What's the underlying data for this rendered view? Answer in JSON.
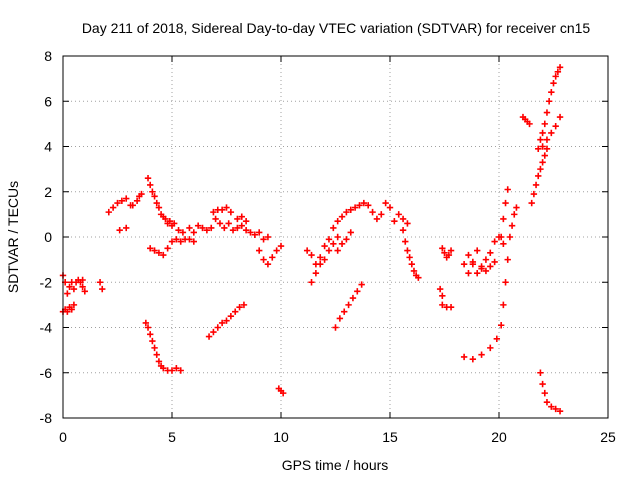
{
  "chart_data": {
    "type": "scatter",
    "title": "Day 211 of 2018, Sidereal Day-to-day VTEC variation (SDTVAR) for receiver cn15",
    "xlabel": "GPS time / hours",
    "ylabel": "SDTVAR / TECUs",
    "xlim": [
      0,
      25
    ],
    "ylim": [
      -8,
      8
    ],
    "xticks": [
      "0",
      "5",
      "10",
      "15",
      "20",
      "25"
    ],
    "yticks": [
      "8",
      "6",
      "4",
      "2",
      "0",
      "-2",
      "-4",
      "-6",
      "-8"
    ],
    "grid": true,
    "marker": "plus",
    "color": "#ff0000",
    "series": [
      {
        "name": "seg-a",
        "x": [
          0.0,
          0.1,
          0.2,
          0.3,
          0.4,
          0.5,
          0.6,
          0.7,
          0.8,
          0.9
        ],
        "y": [
          -1.7,
          -2.0,
          -2.5,
          -2.2,
          -2.0,
          -2.3,
          -2.0,
          -1.9,
          -2.0,
          -1.9
        ]
      },
      {
        "name": "seg-b",
        "x": [
          0.0,
          0.1,
          0.2,
          0.3,
          0.4,
          0.5
        ],
        "y": [
          -3.3,
          -3.2,
          -3.3,
          -3.1,
          -3.2,
          -3.0
        ]
      },
      {
        "name": "seg-c",
        "x": [
          0.9,
          1.0,
          1.7,
          1.8
        ],
        "y": [
          -2.2,
          -2.4,
          -2.0,
          -2.3
        ]
      },
      {
        "name": "seg-d",
        "x": [
          2.1,
          2.3,
          2.5,
          2.7,
          2.9,
          3.1
        ],
        "y": [
          1.1,
          1.3,
          1.5,
          1.6,
          1.7,
          1.4
        ]
      },
      {
        "name": "seg-e",
        "x": [
          2.6,
          2.9
        ],
        "y": [
          0.3,
          0.4
        ]
      },
      {
        "name": "seg-f",
        "x": [
          3.2,
          3.4,
          3.5,
          3.6
        ],
        "y": [
          1.4,
          1.6,
          1.8,
          1.9
        ]
      },
      {
        "name": "seg-g",
        "x": [
          3.9,
          4.0,
          4.1,
          4.2,
          4.3,
          4.4,
          4.5,
          4.6,
          4.7,
          4.8,
          4.9,
          5.0,
          5.1
        ],
        "y": [
          2.6,
          2.3,
          2.0,
          1.8,
          1.5,
          1.3,
          1.0,
          0.9,
          0.8,
          0.6,
          0.7,
          0.5,
          0.6
        ]
      },
      {
        "name": "seg-h",
        "x": [
          4.0,
          4.2,
          4.4,
          4.6,
          4.8,
          5.0,
          5.2,
          5.4,
          5.6,
          5.8,
          6.0
        ],
        "y": [
          -0.5,
          -0.6,
          -0.7,
          -0.8,
          -0.5,
          -0.2,
          -0.1,
          -0.2,
          -0.1,
          -0.1,
          -0.2
        ]
      },
      {
        "name": "seg-i",
        "x": [
          5.3,
          5.5,
          5.8,
          6.0
        ],
        "y": [
          0.3,
          0.2,
          0.4,
          0.2
        ]
      },
      {
        "name": "seg-j",
        "x": [
          3.8,
          3.9,
          4.0,
          4.1,
          4.2,
          4.3,
          4.4,
          4.5,
          4.6,
          4.8,
          5.0,
          5.2,
          5.4
        ],
        "y": [
          -3.8,
          -4.0,
          -4.3,
          -4.6,
          -4.9,
          -5.2,
          -5.5,
          -5.7,
          -5.8,
          -5.9,
          -5.9,
          -5.8,
          -5.9
        ]
      },
      {
        "name": "seg-k",
        "x": [
          6.2,
          6.4,
          6.6,
          6.8,
          7.0,
          7.2,
          7.4,
          7.6,
          7.8,
          8.0,
          8.2,
          8.4,
          8.6,
          8.8,
          9.0,
          9.2,
          9.4
        ],
        "y": [
          0.5,
          0.4,
          0.3,
          0.4,
          0.8,
          0.6,
          0.4,
          0.6,
          0.3,
          0.4,
          0.5,
          0.3,
          0.2,
          0.1,
          0.2,
          -0.1,
          0.0
        ]
      },
      {
        "name": "seg-l",
        "x": [
          6.9,
          7.1,
          7.3,
          7.5,
          7.7
        ],
        "y": [
          1.1,
          1.2,
          1.2,
          1.3,
          1.1
        ]
      },
      {
        "name": "seg-m",
        "x": [
          8.0,
          8.2,
          8.4
        ],
        "y": [
          0.8,
          0.9,
          0.7
        ]
      },
      {
        "name": "seg-n",
        "x": [
          9.0,
          9.2,
          9.4,
          9.6,
          9.8,
          10.0
        ],
        "y": [
          -0.6,
          -1.0,
          -1.2,
          -0.9,
          -0.6,
          -0.4
        ]
      },
      {
        "name": "seg-o",
        "x": [
          6.7,
          6.9,
          7.1,
          7.3,
          7.5,
          7.7,
          7.9,
          8.1,
          8.3
        ],
        "y": [
          -4.4,
          -4.2,
          -4.0,
          -3.8,
          -3.7,
          -3.5,
          -3.3,
          -3.1,
          -3.0
        ]
      },
      {
        "name": "seg-p",
        "x": [
          9.9,
          10.0,
          10.1
        ],
        "y": [
          -6.7,
          -6.8,
          -6.9
        ]
      },
      {
        "name": "seg-q",
        "x": [
          11.2,
          11.4,
          11.6,
          11.8,
          12.0,
          12.2,
          12.4,
          12.6,
          12.8,
          13.0,
          13.2,
          13.4,
          13.6,
          13.8
        ],
        "y": [
          -0.6,
          -0.8,
          -1.2,
          -0.9,
          -0.4,
          -0.1,
          0.4,
          0.7,
          0.9,
          1.1,
          1.2,
          1.3,
          1.4,
          1.5
        ]
      },
      {
        "name": "seg-r",
        "x": [
          11.4,
          11.6,
          11.8,
          12.0,
          12.2,
          12.4,
          12.6
        ],
        "y": [
          -2.0,
          -1.6,
          -1.2,
          -1.0,
          -0.6,
          -0.3,
          0.0
        ]
      },
      {
        "name": "seg-s",
        "x": [
          12.6,
          12.8,
          13.0,
          13.2
        ],
        "y": [
          -0.6,
          -0.3,
          -0.1,
          0.2
        ]
      },
      {
        "name": "seg-t",
        "x": [
          12.5,
          12.7,
          12.9,
          13.1,
          13.3,
          13.5,
          13.7
        ],
        "y": [
          -4.0,
          -3.6,
          -3.3,
          -3.0,
          -2.7,
          -2.4,
          -2.1
        ]
      },
      {
        "name": "seg-u",
        "x": [
          14.0,
          14.2,
          14.4,
          14.6,
          14.8,
          15.0,
          15.2,
          15.4,
          15.6,
          15.8
        ],
        "y": [
          1.4,
          1.1,
          0.8,
          1.0,
          1.5,
          1.3,
          0.7,
          1.0,
          0.8,
          0.6
        ]
      },
      {
        "name": "seg-v",
        "x": [
          15.6,
          15.7,
          15.8,
          15.9,
          16.0,
          16.1,
          16.2,
          16.3
        ],
        "y": [
          0.3,
          -0.2,
          -0.6,
          -0.9,
          -1.2,
          -1.5,
          -1.7,
          -1.8
        ]
      },
      {
        "name": "seg-w",
        "x": [
          17.4,
          17.5,
          17.6,
          17.7,
          17.8
        ],
        "y": [
          -0.5,
          -0.7,
          -0.9,
          -0.8,
          -0.6
        ]
      },
      {
        "name": "seg-x",
        "x": [
          17.3,
          17.4
        ],
        "y": [
          -2.3,
          -2.6
        ]
      },
      {
        "name": "seg-y",
        "x": [
          17.4,
          17.6,
          17.8
        ],
        "y": [
          -3.0,
          -3.1,
          -3.1
        ]
      },
      {
        "name": "seg-z",
        "x": [
          18.4,
          18.6,
          18.8,
          19.0,
          19.2,
          19.4,
          19.6,
          19.8,
          20.0,
          20.2
        ],
        "y": [
          -1.2,
          -1.6,
          -1.1,
          -0.6,
          -1.3,
          -1.5,
          -0.7,
          -0.2,
          0.0,
          -0.3
        ]
      },
      {
        "name": "seg-aa",
        "x": [
          18.6,
          18.8,
          19.0,
          19.2,
          19.4,
          19.6,
          19.8
        ],
        "y": [
          -0.8,
          -1.2,
          -1.6,
          -1.4,
          -1.0,
          -1.3,
          -1.1
        ]
      },
      {
        "name": "seg-ab",
        "x": [
          18.4,
          18.8,
          19.2,
          19.6,
          19.9,
          20.1,
          20.2,
          20.3,
          20.4,
          20.5,
          20.6,
          20.7,
          20.8
        ],
        "y": [
          -5.3,
          -5.4,
          -5.2,
          -4.9,
          -4.5,
          -3.9,
          -3.0,
          -2.0,
          -1.0,
          0.0,
          0.5,
          1.0,
          1.3
        ]
      },
      {
        "name": "seg-ac",
        "x": [
          20.1,
          20.2,
          20.3,
          20.4
        ],
        "y": [
          0.0,
          0.8,
          1.5,
          2.1
        ]
      },
      {
        "name": "seg-ad",
        "x": [
          21.1,
          21.2,
          21.3,
          21.4
        ],
        "y": [
          5.3,
          5.2,
          5.1,
          5.0
        ]
      },
      {
        "name": "seg-ae",
        "x": [
          21.8,
          21.9,
          22.0,
          22.1,
          22.2,
          22.3,
          22.4,
          22.5,
          22.6,
          22.7,
          22.8
        ],
        "y": [
          3.9,
          4.3,
          4.6,
          5.0,
          5.5,
          6.0,
          6.4,
          6.8,
          7.1,
          7.3,
          7.5
        ]
      },
      {
        "name": "seg-af",
        "x": [
          21.5,
          21.6,
          21.7,
          21.8,
          21.9,
          22.0,
          22.1,
          22.2
        ],
        "y": [
          1.5,
          1.9,
          2.3,
          2.7,
          3.0,
          3.3,
          3.6,
          3.9
        ]
      },
      {
        "name": "seg-ag",
        "x": [
          22.0,
          22.2,
          22.4,
          22.6,
          22.8
        ],
        "y": [
          4.0,
          4.3,
          4.6,
          4.9,
          5.3
        ]
      },
      {
        "name": "seg-ah",
        "x": [
          21.9,
          22.0,
          22.1,
          22.2,
          22.4,
          22.6,
          22.8
        ],
        "y": [
          -6.0,
          -6.5,
          -6.9,
          -7.3,
          -7.5,
          -7.6,
          -7.7
        ]
      }
    ]
  }
}
